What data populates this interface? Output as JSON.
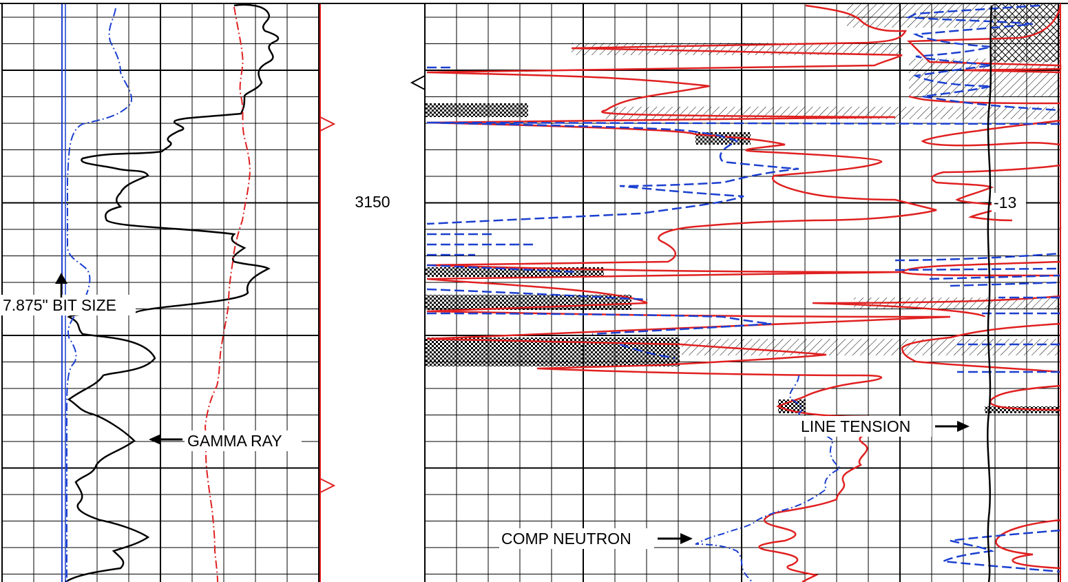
{
  "chart_data": {
    "type": "line",
    "depth_label": "3150",
    "tension_readout": "-13",
    "annotations": {
      "bit_size": "7.875\" BIT SIZE",
      "gamma_ray": "GAMMA RAY",
      "line_tension": "LINE TENSION",
      "comp_neutron": "COMP NEUTRON"
    },
    "colors": {
      "gamma_ray": "#000000",
      "caliper": "#1a3fd0",
      "bit_size": "#1a3fd0",
      "sp": "#e02020",
      "density_porosity": "#e02020",
      "neutron_porosity": "#1a3fd0",
      "tension": "#000000",
      "crossover_fill": "#000000"
    },
    "series": [
      {
        "track": "left",
        "style": "solid",
        "depth": [
          0,
          40,
          70,
          100,
          130,
          160,
          185,
          210,
          240,
          250,
          265,
          290,
          320,
          345,
          370,
          390,
          410,
          430,
          452,
          470,
          495,
          520,
          545,
          575,
          600,
          630,
          650,
          680,
          710,
          740,
          770,
          800,
          845
        ],
        "value": [
          370,
          400,
          380,
          360,
          350,
          340,
          300,
          250,
          150,
          120,
          200,
          180,
          170,
          250,
          360,
          385,
          350,
          340,
          200,
          140,
          180,
          220,
          205,
          110,
          135,
          190,
          165,
          150,
          125,
          130,
          235,
          180,
          110
        ]
      },
      {
        "track": "left",
        "style": "dashdot",
        "depth": [
          0,
          40,
          70,
          100,
          130,
          160,
          185,
          210,
          240,
          250,
          265,
          290,
          320,
          345,
          370,
          390,
          410,
          430,
          452,
          470,
          495,
          520,
          545,
          575,
          600,
          630,
          650,
          680,
          710,
          740,
          770,
          800,
          845
        ],
        "value": [
          160,
          155,
          172,
          182,
          188,
          150,
          110,
          99,
          98,
          98,
          99,
          99,
          99,
          99,
          102,
          125,
          132,
          115,
          100,
          98,
          110,
          100,
          97,
          97,
          97,
          97,
          97,
          97,
          97,
          97,
          97,
          97,
          97
        ]
      },
      {
        "track": "left",
        "style": "dashdot_red",
        "depth": [
          0,
          40,
          70,
          100,
          130,
          160,
          185,
          210,
          240,
          250,
          265,
          290,
          320,
          345,
          370,
          390,
          410,
          430,
          452,
          470,
          495,
          520,
          545,
          575,
          600,
          630,
          650,
          680,
          710,
          740,
          770,
          800,
          845
        ],
        "value": [
          340,
          345,
          350,
          355,
          352,
          350,
          355,
          360,
          360,
          358,
          356,
          355,
          345,
          340,
          338,
          335,
          333,
          332,
          330,
          325,
          322,
          320,
          318,
          310,
          300,
          298,
          298,
          300,
          302,
          305,
          308,
          310,
          315
        ]
      }
    ]
  }
}
